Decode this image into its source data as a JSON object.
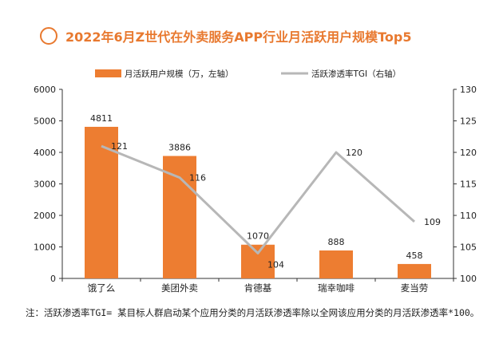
{
  "title": "2022年6月Z世代在外卖服务APP行业月活跃用户规模Top5",
  "note": "注：活跃渗透率TGI= 某目标人群启动某个应用分类的月活跃渗透率除以全网该应用分类的月活跃渗透率*100。",
  "colors": {
    "accent": "#e8792f",
    "bar": "#ed7d31",
    "line": "#b7b7b7",
    "axis": "#333333",
    "text": "#222222"
  },
  "chart_data": {
    "type": "bar",
    "categories": [
      "饿了么",
      "美团外卖",
      "肯德基",
      "瑞幸咖啡",
      "麦当劳"
    ],
    "series": [
      {
        "name": "月活跃用户规模（万，左轴）",
        "type": "bar",
        "axis": "left",
        "values": [
          4811,
          3886,
          1070,
          888,
          458
        ]
      },
      {
        "name": "活跃渗透率TGI（右轴）",
        "type": "line",
        "axis": "right",
        "values": [
          121,
          116,
          104,
          120,
          109
        ]
      }
    ],
    "y_left": {
      "min": 0,
      "max": 6000,
      "ticks": [
        0,
        1000,
        2000,
        3000,
        4000,
        5000,
        6000
      ]
    },
    "y_right": {
      "min": 100,
      "max": 130,
      "ticks": [
        100,
        105,
        110,
        115,
        120,
        125,
        130
      ]
    },
    "legend_position": "top",
    "grid": false
  }
}
